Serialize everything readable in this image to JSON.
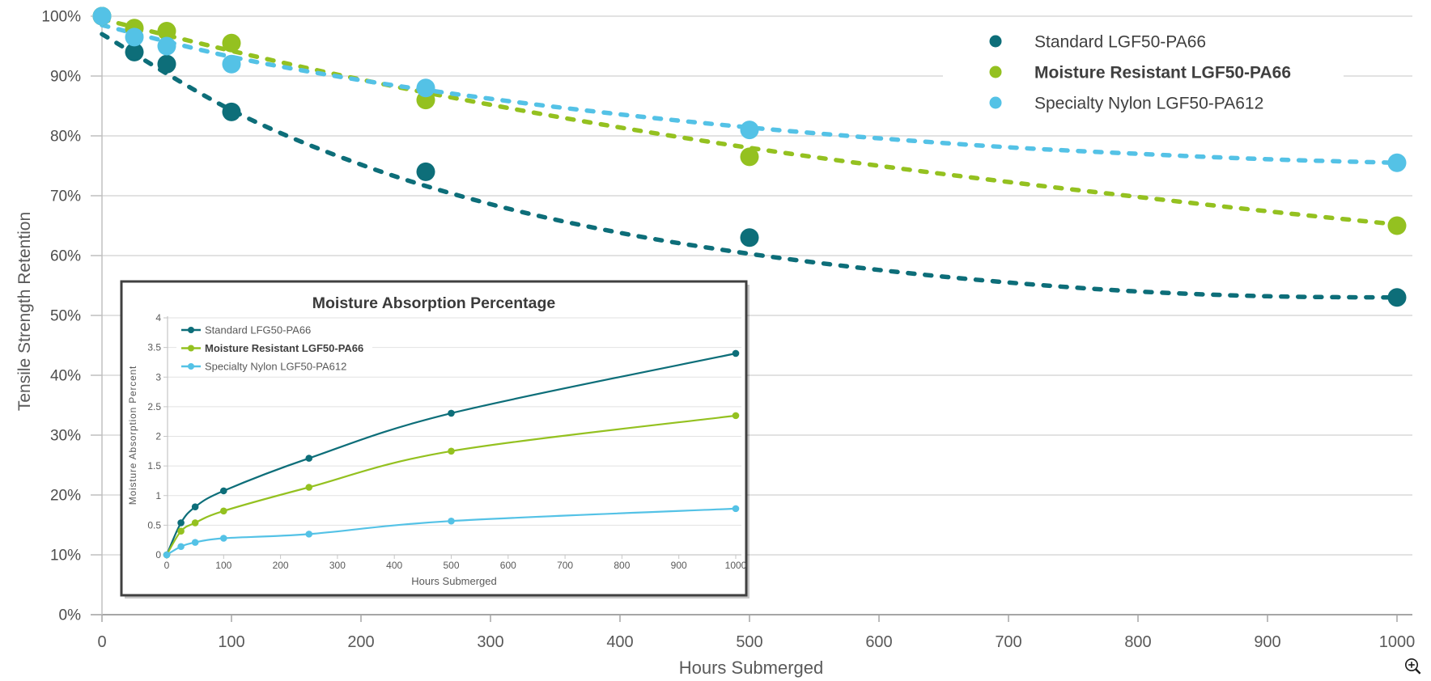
{
  "page": {
    "background": "#ffffff"
  },
  "icons": {
    "bottom_right": "zoom-in-magnifier"
  },
  "palette": {
    "standard": "#0d6e79",
    "moisture_resistant": "#94c120",
    "specialty_nylon": "#54c2e6",
    "gridline": "#d9d9d9",
    "axis_line": "#a6a6a6",
    "tick_text": "#595959",
    "label_text": "#3f3f3f",
    "inset_border": "#404040",
    "magnifier": "#1a1a1a"
  },
  "chart_data": [
    {
      "id": "main",
      "type": "scatter",
      "title": "",
      "xlabel": "Hours Submerged",
      "ylabel": "Tensile Strength Retention",
      "xlim": [
        0,
        1000
      ],
      "ylim": [
        0,
        100
      ],
      "x_tick_labels": [
        "0",
        "100",
        "200",
        "300",
        "400",
        "500",
        "600",
        "700",
        "800",
        "900",
        "1000"
      ],
      "y_tick_labels": [
        "0%",
        "10%",
        "20%",
        "30%",
        "40%",
        "50%",
        "60%",
        "70%",
        "80%",
        "90%",
        "100%"
      ],
      "grid": "horizontal",
      "legend_position": "top-right",
      "marker_style": "filled-circle",
      "line_style": "dashed-trend",
      "x": [
        0,
        25,
        50,
        100,
        250,
        500,
        1000
      ],
      "trend_x": [
        0,
        100,
        200,
        300,
        400,
        500,
        600,
        700,
        800,
        900,
        1000
      ],
      "series": [
        {
          "name": "Standard LGF50-PA66",
          "color": "#0d6e79",
          "bold": false,
          "values": [
            100,
            94,
            92,
            84,
            74,
            63,
            53
          ],
          "trend": [
            97,
            84.3,
            75.2,
            68.6,
            63.8,
            60.3,
            57.6,
            55.5,
            54,
            53.2,
            53
          ]
        },
        {
          "name": "Moisture Resistant LGF50-PA66",
          "color": "#94c120",
          "bold": true,
          "values": [
            100,
            98,
            97.5,
            95.5,
            86,
            76.5,
            65
          ],
          "trend": [
            99.5,
            94.2,
            89.4,
            85.2,
            81.4,
            78,
            75,
            72.3,
            69.8,
            67.4,
            65.2
          ]
        },
        {
          "name": "Specialty Nylon LGF50-PA612",
          "color": "#54c2e6",
          "bold": false,
          "values": [
            100,
            96.5,
            95,
            92,
            88,
            81,
            75.5
          ],
          "trend": [
            98.5,
            93.2,
            89.3,
            86.2,
            83.6,
            81.4,
            79.6,
            78.1,
            77,
            76.1,
            75.5
          ]
        }
      ]
    },
    {
      "id": "inset",
      "type": "line",
      "title": "Moisture Absorption Percentage",
      "xlabel": "Hours Submerged",
      "ylabel": "Moisture Absorption Percent",
      "xlim": [
        0,
        1000
      ],
      "ylim": [
        0,
        4
      ],
      "x_tick_labels": [
        "0",
        "100",
        "200",
        "300",
        "400",
        "500",
        "600",
        "700",
        "800",
        "900",
        "1000"
      ],
      "y_tick_labels": [
        "0",
        "0.5",
        "1",
        "1.5",
        "2",
        "2.5",
        "3",
        "3.5",
        "4"
      ],
      "grid": "horizontal",
      "legend_position": "top-left",
      "x": [
        0,
        25,
        50,
        100,
        250,
        500,
        1000
      ],
      "series": [
        {
          "name": "Standard LFG50-PA66",
          "color": "#0d6e79",
          "bold": false,
          "values": [
            0,
            0.54,
            0.81,
            1.08,
            1.63,
            2.39,
            3.4
          ]
        },
        {
          "name": "Moisture Resistant LGF50-PA66",
          "color": "#94c120",
          "bold": true,
          "values": [
            0,
            0.4,
            0.54,
            0.74,
            1.14,
            1.75,
            2.35
          ]
        },
        {
          "name": "Specialty Nylon LGF50-PA612",
          "color": "#54c2e6",
          "bold": false,
          "values": [
            0,
            0.14,
            0.21,
            0.28,
            0.35,
            0.57,
            0.78
          ]
        }
      ]
    }
  ]
}
